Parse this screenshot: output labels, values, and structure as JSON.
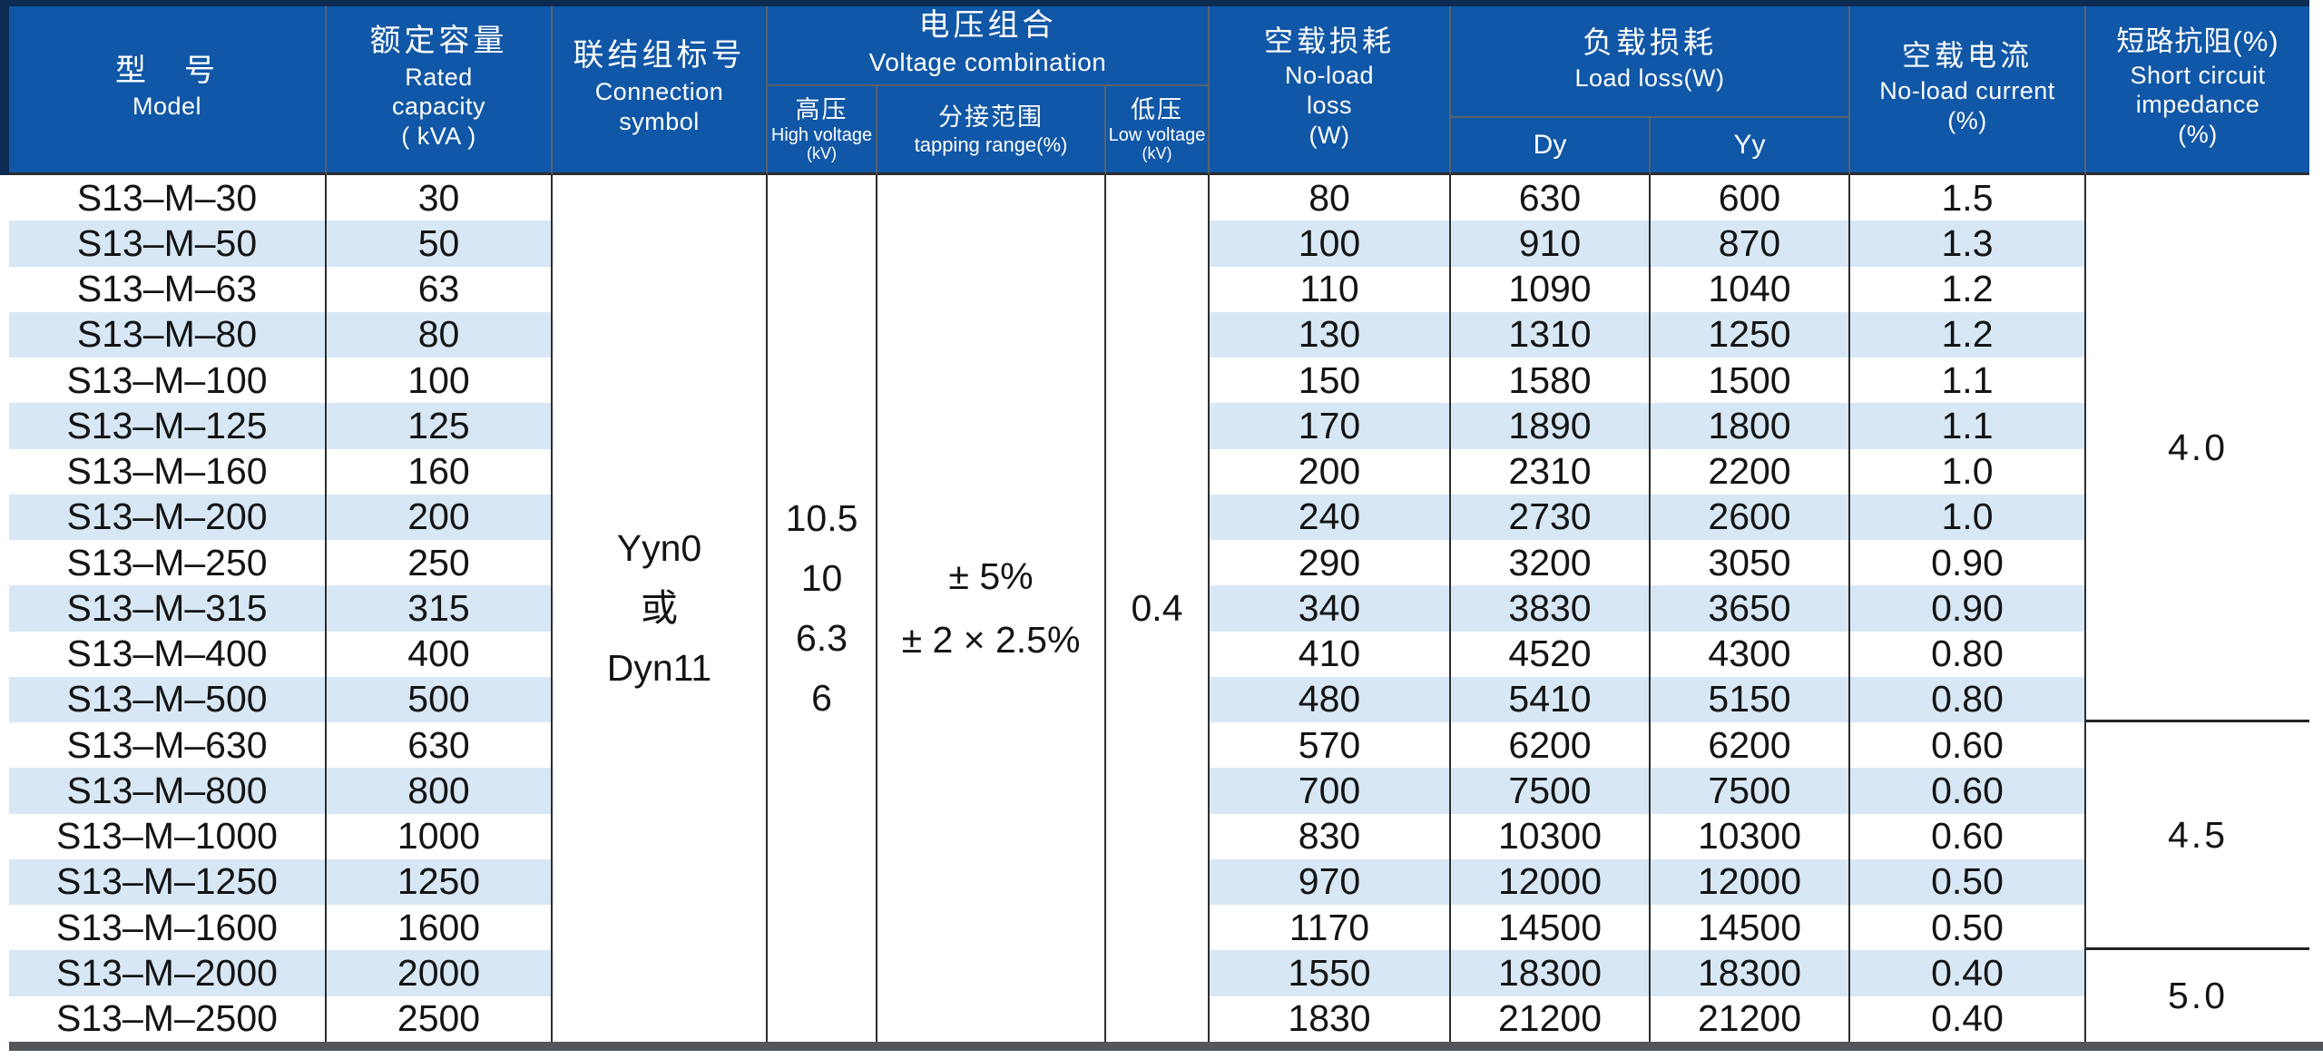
{
  "colors": {
    "header_blue": "#1157A7",
    "navy_edge": "#0C2B52",
    "stripe_blue": "#D7E7F5",
    "body_border": "#2D2D2D",
    "header_border": "#59626C",
    "bottom_bar": "#53575C",
    "header_text": "#FFFFFF",
    "body_text": "#141414"
  },
  "table": {
    "header": {
      "model_zh": "型　号",
      "model_en": "Model",
      "capacity_zh": "额定容量",
      "capacity_en1": "Rated",
      "capacity_en2": "capacity",
      "capacity_en3": "( kVA )",
      "connection_zh": "联结组标号",
      "connection_en1": "Connection",
      "connection_en2": "symbol",
      "voltage_zh": "电压组合",
      "voltage_en": "Voltage combination",
      "hv_zh": "高压",
      "hv_en": "High voltage",
      "hv_unit": "(kV)",
      "tap_zh": "分接范围",
      "tap_en": "tapping range(%)",
      "lv_zh": "低压",
      "lv_en": "Low voltage",
      "lv_unit": "(kV)",
      "noload_zh": "空载损耗",
      "noload_en1": "No-load",
      "noload_en2": "loss",
      "noload_en3": "(W)",
      "loadloss_zh": "负载损耗",
      "loadloss_en": "Load loss(W)",
      "dy": "Dy",
      "yy": "Yy",
      "current_zh": "空载电流",
      "current_en1": "No-load current",
      "current_en2": "(%)",
      "impedance_zh": "短路抗阻(%)",
      "impedance_en1": "Short circuit",
      "impedance_en2": "impedance",
      "impedance_en3": "(%)"
    },
    "merged": {
      "connection_lines": [
        "Yyn0",
        "或",
        "Dyn11"
      ],
      "high_voltage_lines": [
        "10.5",
        "10",
        "6.3",
        "6"
      ],
      "tapping_lines": [
        "± 5%",
        "± 2 × 2.5%"
      ],
      "low_voltage": "0.4",
      "impedance_groups": [
        {
          "value": "4.0",
          "row_span": 12
        },
        {
          "value": "4.5",
          "row_span": 5
        },
        {
          "value": "5.0",
          "row_span": 2
        }
      ]
    },
    "rows": [
      {
        "model": "S13–M–30",
        "capacity": "30",
        "no_load_loss": "80",
        "load_loss_dy": "630",
        "load_loss_yy": "600",
        "no_load_current": "1.5"
      },
      {
        "model": "S13–M–50",
        "capacity": "50",
        "no_load_loss": "100",
        "load_loss_dy": "910",
        "load_loss_yy": "870",
        "no_load_current": "1.3"
      },
      {
        "model": "S13–M–63",
        "capacity": "63",
        "no_load_loss": "110",
        "load_loss_dy": "1090",
        "load_loss_yy": "1040",
        "no_load_current": "1.2"
      },
      {
        "model": "S13–M–80",
        "capacity": "80",
        "no_load_loss": "130",
        "load_loss_dy": "1310",
        "load_loss_yy": "1250",
        "no_load_current": "1.2"
      },
      {
        "model": "S13–M–100",
        "capacity": "100",
        "no_load_loss": "150",
        "load_loss_dy": "1580",
        "load_loss_yy": "1500",
        "no_load_current": "1.1"
      },
      {
        "model": "S13–M–125",
        "capacity": "125",
        "no_load_loss": "170",
        "load_loss_dy": "1890",
        "load_loss_yy": "1800",
        "no_load_current": "1.1"
      },
      {
        "model": "S13–M–160",
        "capacity": "160",
        "no_load_loss": "200",
        "load_loss_dy": "2310",
        "load_loss_yy": "2200",
        "no_load_current": "1.0"
      },
      {
        "model": "S13–M–200",
        "capacity": "200",
        "no_load_loss": "240",
        "load_loss_dy": "2730",
        "load_loss_yy": "2600",
        "no_load_current": "1.0"
      },
      {
        "model": "S13–M–250",
        "capacity": "250",
        "no_load_loss": "290",
        "load_loss_dy": "3200",
        "load_loss_yy": "3050",
        "no_load_current": "0.90"
      },
      {
        "model": "S13–M–315",
        "capacity": "315",
        "no_load_loss": "340",
        "load_loss_dy": "3830",
        "load_loss_yy": "3650",
        "no_load_current": "0.90"
      },
      {
        "model": "S13–M–400",
        "capacity": "400",
        "no_load_loss": "410",
        "load_loss_dy": "4520",
        "load_loss_yy": "4300",
        "no_load_current": "0.80"
      },
      {
        "model": "S13–M–500",
        "capacity": "500",
        "no_load_loss": "480",
        "load_loss_dy": "5410",
        "load_loss_yy": "5150",
        "no_load_current": "0.80"
      },
      {
        "model": "S13–M–630",
        "capacity": "630",
        "no_load_loss": "570",
        "load_loss_dy": "6200",
        "load_loss_yy": "6200",
        "no_load_current": "0.60"
      },
      {
        "model": "S13–M–800",
        "capacity": "800",
        "no_load_loss": "700",
        "load_loss_dy": "7500",
        "load_loss_yy": "7500",
        "no_load_current": "0.60"
      },
      {
        "model": "S13–M–1000",
        "capacity": "1000",
        "no_load_loss": "830",
        "load_loss_dy": "10300",
        "load_loss_yy": "10300",
        "no_load_current": "0.60"
      },
      {
        "model": "S13–M–1250",
        "capacity": "1250",
        "no_load_loss": "970",
        "load_loss_dy": "12000",
        "load_loss_yy": "12000",
        "no_load_current": "0.50"
      },
      {
        "model": "S13–M–1600",
        "capacity": "1600",
        "no_load_loss": "1170",
        "load_loss_dy": "14500",
        "load_loss_yy": "14500",
        "no_load_current": "0.50"
      },
      {
        "model": "S13–M–2000",
        "capacity": "2000",
        "no_load_loss": "1550",
        "load_loss_dy": "18300",
        "load_loss_yy": "18300",
        "no_load_current": "0.40"
      },
      {
        "model": "S13–M–2500",
        "capacity": "2500",
        "no_load_loss": "1830",
        "load_loss_dy": "21200",
        "load_loss_yy": "21200",
        "no_load_current": "0.40"
      }
    ]
  }
}
